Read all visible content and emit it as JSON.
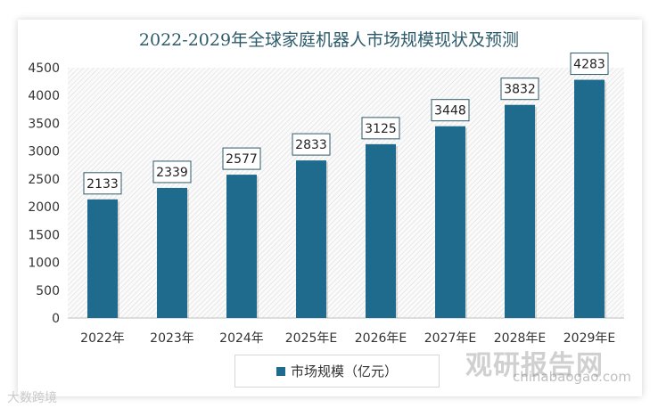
{
  "chart_data": {
    "type": "bar",
    "title": "2022-2029年全球家庭机器人市场规模现状及预测",
    "categories": [
      "2022年",
      "2023年",
      "2024年",
      "2025年E",
      "2026年E",
      "2027年E",
      "2028年E",
      "2029年E"
    ],
    "series": [
      {
        "name": "市场规模（亿元）",
        "values": [
          2133,
          2339,
          2577,
          2833,
          3125,
          3448,
          3832,
          4283
        ]
      }
    ],
    "ylim": [
      0,
      4500
    ],
    "yticks": [
      0,
      500,
      1000,
      1500,
      2000,
      2500,
      3000,
      3500,
      4000,
      4500
    ],
    "grid": false,
    "legend": "bottom",
    "data_labels": true,
    "colors": {
      "bar": "#1f6b8e",
      "label_border": "#2c5a6b"
    }
  },
  "watermarks": {
    "brand": "观研报告网",
    "url": "chinabaogao.com",
    "source": "大数跨境"
  }
}
